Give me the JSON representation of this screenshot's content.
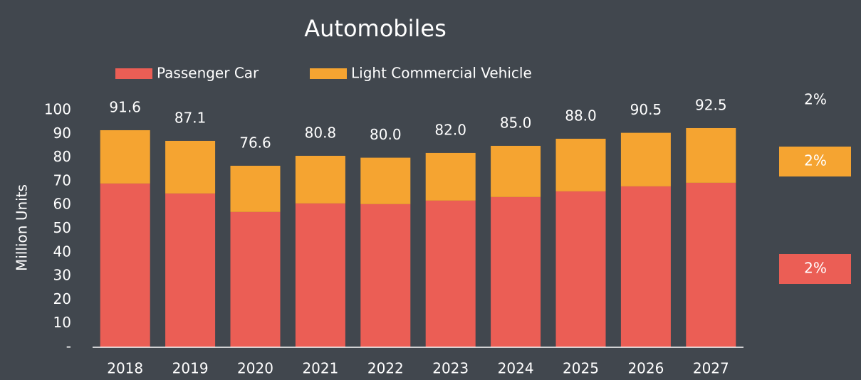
{
  "chart_data": {
    "type": "stacked_bar",
    "title": "Automobiles",
    "ylabel": "Million Units",
    "categories": [
      "2018",
      "2019",
      "2020",
      "2021",
      "2022",
      "2023",
      "2024",
      "2025",
      "2026",
      "2027"
    ],
    "series": [
      {
        "name": "Passenger Car",
        "color": "#eb5e55",
        "values": [
          69.1,
          64.9,
          57.1,
          60.7,
          60.4,
          61.9,
          63.4,
          65.8,
          67.9,
          69.4
        ]
      },
      {
        "name": "Light Commercial Vehicle",
        "color": "#f5a431",
        "values": [
          22.5,
          22.2,
          19.5,
          20.1,
          19.6,
          20.1,
          21.6,
          22.2,
          22.6,
          23.1
        ]
      }
    ],
    "totals": {
      "values": [
        91.6,
        87.1,
        76.6,
        80.8,
        80.0,
        82.0,
        85.0,
        88.0,
        90.5,
        92.5
      ],
      "value_labels": [
        "91.6",
        "87.1",
        "76.6",
        "80.8",
        "80.0",
        "82.0",
        "85.0",
        "88.0",
        "90.5",
        "92.5"
      ]
    },
    "ylim": [
      0,
      100
    ],
    "yticks": [
      {
        "value": 0,
        "label": "-"
      },
      10,
      20,
      30,
      40,
      50,
      60,
      70,
      80,
      90,
      100
    ],
    "legend": "top",
    "annotations": [
      {
        "text": "2%"
      },
      {
        "text": "2%",
        "color": "#f5a431"
      },
      {
        "text": "2%",
        "color": "#eb5e55"
      }
    ]
  }
}
